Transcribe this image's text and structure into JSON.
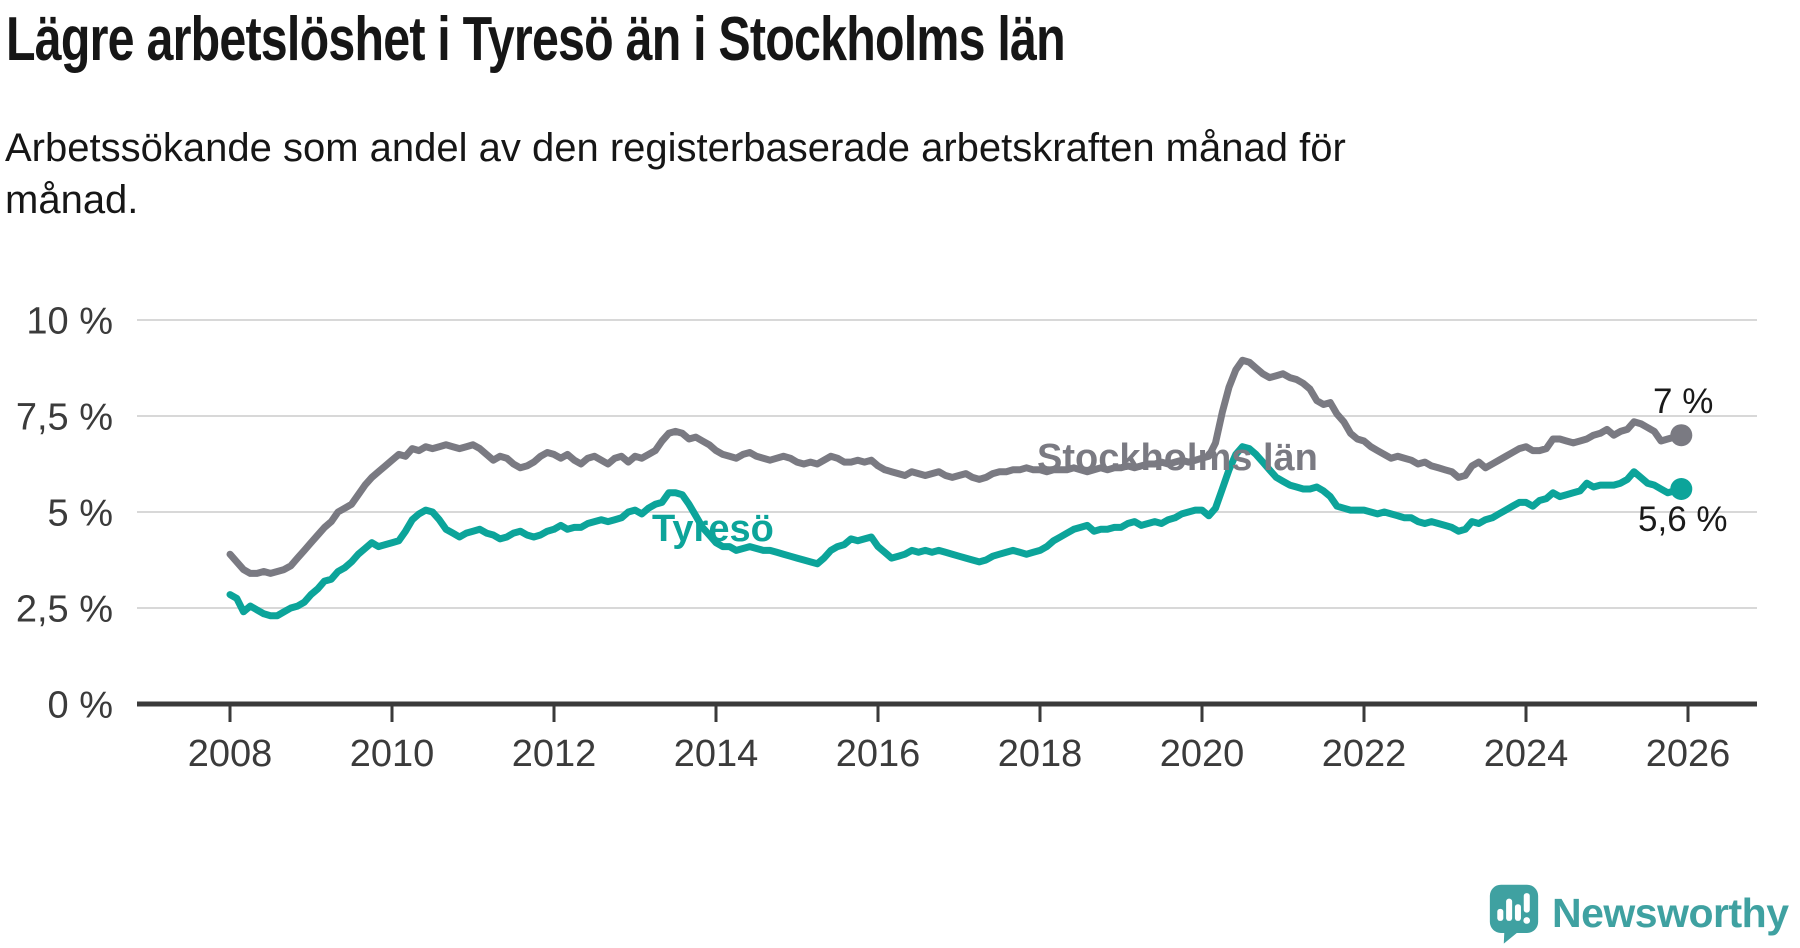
{
  "title": "Lägre arbetslöshet i Tyresö än i Stockholms län",
  "subtitle": {
    "line1": "Arbetssökande som andel av den registerbaserade arbetskraften månad för",
    "line2": "månad."
  },
  "branding": {
    "logo_text": "Newsworthy",
    "logo_color": "#3fa1a1"
  },
  "chart_data": {
    "type": "line",
    "x_start": "2008-01",
    "x_end": "2025-12",
    "x_frequency": "monthly",
    "ylim": [
      0,
      10
    ],
    "grid": true,
    "grid_color": "#d8d8d8",
    "axis_color": "#3a3a3a",
    "end_label_color": "#1a1a1a",
    "y_ticks": [
      {
        "value": 0,
        "label": "0 %"
      },
      {
        "value": 2.5,
        "label": "2,5 %"
      },
      {
        "value": 5,
        "label": "5 %"
      },
      {
        "value": 7.5,
        "label": "7,5 %"
      },
      {
        "value": 10,
        "label": "10 %"
      }
    ],
    "x_ticks": [
      {
        "year": 2008,
        "label": "2008"
      },
      {
        "year": 2010,
        "label": "2010"
      },
      {
        "year": 2012,
        "label": "2012"
      },
      {
        "year": 2014,
        "label": "2014"
      },
      {
        "year": 2016,
        "label": "2016"
      },
      {
        "year": 2018,
        "label": "2018"
      },
      {
        "year": 2020,
        "label": "2020"
      },
      {
        "year": 2022,
        "label": "2022"
      },
      {
        "year": 2024,
        "label": "2024"
      },
      {
        "year": 2026,
        "label": "2026"
      }
    ],
    "series": [
      {
        "name": "Stockholms län",
        "color": "#7a7a82",
        "end_label": "7 %",
        "end_value": 7.0,
        "values": [
          3.9,
          3.7,
          3.5,
          3.4,
          3.4,
          3.45,
          3.4,
          3.45,
          3.5,
          3.6,
          3.8,
          4.0,
          4.2,
          4.4,
          4.6,
          4.75,
          5.0,
          5.1,
          5.2,
          5.45,
          5.7,
          5.9,
          6.05,
          6.2,
          6.35,
          6.5,
          6.45,
          6.65,
          6.6,
          6.7,
          6.65,
          6.7,
          6.75,
          6.7,
          6.65,
          6.7,
          6.75,
          6.65,
          6.5,
          6.35,
          6.45,
          6.4,
          6.25,
          6.15,
          6.2,
          6.3,
          6.45,
          6.55,
          6.5,
          6.4,
          6.5,
          6.35,
          6.25,
          6.4,
          6.45,
          6.35,
          6.25,
          6.4,
          6.45,
          6.3,
          6.45,
          6.4,
          6.5,
          6.6,
          6.85,
          7.05,
          7.1,
          7.05,
          6.9,
          6.95,
          6.85,
          6.75,
          6.6,
          6.5,
          6.45,
          6.4,
          6.5,
          6.55,
          6.45,
          6.4,
          6.35,
          6.4,
          6.45,
          6.4,
          6.3,
          6.25,
          6.3,
          6.25,
          6.35,
          6.45,
          6.4,
          6.3,
          6.3,
          6.35,
          6.3,
          6.35,
          6.2,
          6.1,
          6.05,
          6.0,
          5.95,
          6.05,
          6.0,
          5.95,
          6.0,
          6.05,
          5.95,
          5.9,
          5.95,
          6.0,
          5.9,
          5.85,
          5.9,
          6.0,
          6.05,
          6.05,
          6.1,
          6.1,
          6.15,
          6.1,
          6.1,
          6.05,
          6.1,
          6.1,
          6.1,
          6.15,
          6.1,
          6.05,
          6.1,
          6.15,
          6.1,
          6.15,
          6.15,
          6.2,
          6.15,
          6.2,
          6.25,
          6.25,
          6.3,
          6.25,
          6.3,
          6.35,
          6.3,
          6.35,
          6.4,
          6.45,
          6.8,
          7.6,
          8.25,
          8.7,
          8.95,
          8.9,
          8.75,
          8.6,
          8.5,
          8.55,
          8.6,
          8.5,
          8.45,
          8.35,
          8.2,
          7.9,
          7.8,
          7.85,
          7.55,
          7.35,
          7.05,
          6.9,
          6.85,
          6.7,
          6.6,
          6.5,
          6.4,
          6.45,
          6.4,
          6.35,
          6.25,
          6.3,
          6.2,
          6.15,
          6.1,
          6.05,
          5.9,
          5.95,
          6.2,
          6.3,
          6.15,
          6.25,
          6.35,
          6.45,
          6.55,
          6.65,
          6.7,
          6.6,
          6.6,
          6.65,
          6.9,
          6.9,
          6.85,
          6.8,
          6.85,
          6.9,
          7.0,
          7.05,
          7.15,
          7.0,
          7.1,
          7.15,
          7.35,
          7.3,
          7.2,
          7.1,
          6.85,
          6.9,
          6.95,
          7.0
        ]
      },
      {
        "name": "Tyresö",
        "color": "#0ca49a",
        "end_label": "5,6 %",
        "end_value": 5.6,
        "values": [
          2.85,
          2.75,
          2.4,
          2.55,
          2.45,
          2.35,
          2.3,
          2.3,
          2.4,
          2.5,
          2.55,
          2.65,
          2.85,
          3.0,
          3.2,
          3.25,
          3.45,
          3.55,
          3.7,
          3.9,
          4.05,
          4.2,
          4.1,
          4.15,
          4.2,
          4.25,
          4.5,
          4.8,
          4.95,
          5.05,
          5.0,
          4.8,
          4.55,
          4.45,
          4.35,
          4.45,
          4.5,
          4.55,
          4.45,
          4.4,
          4.3,
          4.35,
          4.45,
          4.5,
          4.4,
          4.35,
          4.4,
          4.5,
          4.55,
          4.65,
          4.55,
          4.6,
          4.6,
          4.7,
          4.75,
          4.8,
          4.75,
          4.8,
          4.85,
          5.0,
          5.05,
          4.95,
          5.1,
          5.2,
          5.25,
          5.5,
          5.5,
          5.45,
          5.2,
          4.9,
          4.6,
          4.4,
          4.2,
          4.1,
          4.1,
          4.0,
          4.05,
          4.1,
          4.05,
          4.0,
          4.0,
          3.95,
          3.9,
          3.85,
          3.8,
          3.75,
          3.7,
          3.65,
          3.8,
          4.0,
          4.1,
          4.15,
          4.3,
          4.25,
          4.3,
          4.35,
          4.1,
          3.95,
          3.8,
          3.85,
          3.9,
          4.0,
          3.95,
          4.0,
          3.95,
          4.0,
          3.95,
          3.9,
          3.85,
          3.8,
          3.75,
          3.7,
          3.75,
          3.85,
          3.9,
          3.95,
          4.0,
          3.95,
          3.9,
          3.95,
          4.0,
          4.1,
          4.25,
          4.35,
          4.45,
          4.55,
          4.6,
          4.65,
          4.5,
          4.55,
          4.55,
          4.6,
          4.6,
          4.7,
          4.75,
          4.65,
          4.7,
          4.75,
          4.7,
          4.8,
          4.85,
          4.95,
          5.0,
          5.05,
          5.05,
          4.9,
          5.1,
          5.6,
          6.1,
          6.5,
          6.7,
          6.65,
          6.5,
          6.3,
          6.1,
          5.9,
          5.8,
          5.7,
          5.65,
          5.6,
          5.6,
          5.65,
          5.55,
          5.4,
          5.15,
          5.1,
          5.05,
          5.05,
          5.05,
          5.0,
          4.95,
          5.0,
          4.95,
          4.9,
          4.85,
          4.85,
          4.75,
          4.7,
          4.75,
          4.7,
          4.65,
          4.6,
          4.5,
          4.55,
          4.75,
          4.7,
          4.8,
          4.85,
          4.95,
          5.05,
          5.15,
          5.25,
          5.25,
          5.15,
          5.3,
          5.35,
          5.5,
          5.4,
          5.45,
          5.5,
          5.55,
          5.75,
          5.65,
          5.7,
          5.7,
          5.7,
          5.75,
          5.85,
          6.05,
          5.9,
          5.75,
          5.7,
          5.6,
          5.5,
          5.55,
          5.6
        ]
      }
    ]
  }
}
